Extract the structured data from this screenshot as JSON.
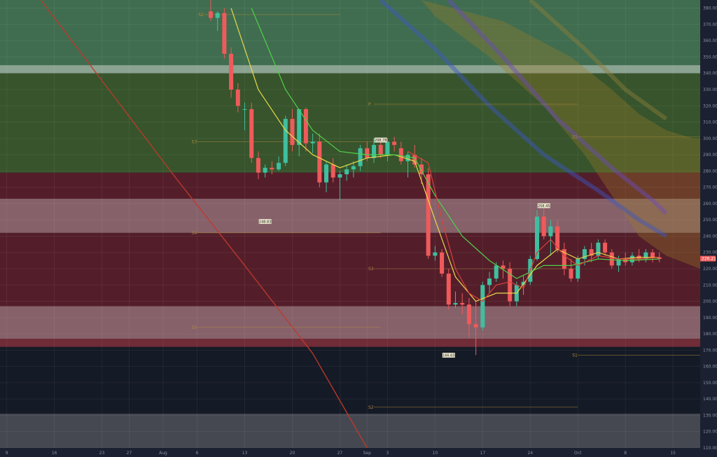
{
  "chart_data": {
    "type": "candlestick",
    "ylim": [
      110,
      385
    ],
    "y_ticks": [
      110,
      120,
      130,
      140,
      150,
      160,
      170,
      180,
      190,
      200,
      210,
      220,
      230,
      240,
      250,
      260,
      270,
      280,
      290,
      300,
      310,
      320,
      330,
      340,
      350,
      360,
      370,
      380
    ],
    "y_tick_labels": [
      "110.00",
      "120.00",
      "130.00",
      "140.00",
      "150.00",
      "160.00",
      "170.00",
      "180.00",
      "190.00",
      "200.00",
      "210.00",
      "220.00",
      "230.00",
      "240.00",
      "250.00",
      "260.00",
      "270.00",
      "280.00",
      "290.00",
      "300.00",
      "310.00",
      "320.00",
      "330.00",
      "340.00",
      "350.00",
      "360.00",
      "370.00",
      "380.00"
    ],
    "x_ticks": [
      {
        "label": "9",
        "day": -63
      },
      {
        "label": "16",
        "day": -56
      },
      {
        "label": "23",
        "day": -49
      },
      {
        "label": "27",
        "day": -45
      },
      {
        "label": "Aug",
        "day": -40
      },
      {
        "label": "6",
        "day": -35
      },
      {
        "label": "13",
        "day": -28
      },
      {
        "label": "20",
        "day": -21
      },
      {
        "label": "27",
        "day": -14
      },
      {
        "label": "Sep",
        "day": -10
      },
      {
        "label": "3",
        "day": -7
      },
      {
        "label": "10",
        "day": 0
      },
      {
        "label": "17",
        "day": 7
      },
      {
        "label": "24",
        "day": 14
      },
      {
        "label": "Oct",
        "day": 21
      },
      {
        "label": "8",
        "day": 28
      },
      {
        "label": "15",
        "day": 35
      }
    ],
    "xlim_days": [
      -64,
      39
    ],
    "current_price": 226.21,
    "current_price_label": "226.21",
    "zones": [
      {
        "from": 345,
        "to": 385,
        "color": "#4f8a5e",
        "opacity": 0.75
      },
      {
        "from": 340,
        "to": 345,
        "color": "#a9c6ad",
        "opacity": 0.8
      },
      {
        "from": 279,
        "to": 340,
        "color": "#3d5f2e",
        "opacity": 0.85
      },
      {
        "from": 263,
        "to": 279,
        "color": "#5a1f2b",
        "opacity": 0.9
      },
      {
        "from": 242,
        "to": 263,
        "color": "#9a6f77",
        "opacity": 0.85
      },
      {
        "from": 197,
        "to": 242,
        "color": "#5a1f2b",
        "opacity": 0.9
      },
      {
        "from": 177,
        "to": 197,
        "color": "#9a6f77",
        "opacity": 0.85
      },
      {
        "from": 172,
        "to": 177,
        "color": "#7a2f3a",
        "opacity": 0.9
      },
      {
        "from": 131,
        "to": 172,
        "color": "#141a26",
        "opacity": 1
      },
      {
        "from": 110,
        "to": 131,
        "color": "#4a4e57",
        "opacity": 0.9
      }
    ],
    "levels": [
      {
        "label": "S2",
        "price": 376,
        "day_from": -34,
        "day_to": -14
      },
      {
        "label": "P",
        "price": 321,
        "day_from": -9,
        "day_to": 21
      },
      {
        "label": "S3",
        "price": 298,
        "day_from": -35,
        "day_to": -8
      },
      {
        "label": "S1",
        "price": 301,
        "day_from": 21,
        "day_to": 39
      },
      {
        "label": "S4",
        "price": 242,
        "day_from": -35,
        "day_to": -8
      },
      {
        "label": "S3",
        "price": 220,
        "day_from": -9,
        "day_to": 21
      },
      {
        "label": "S5",
        "price": 184,
        "day_from": -35,
        "day_to": -8
      },
      {
        "label": "S1",
        "price": 167,
        "day_from": 21,
        "day_to": 39
      },
      {
        "label": "S2",
        "price": 135,
        "day_from": -9,
        "day_to": 21
      }
    ],
    "pivot_flags": [
      {
        "label": "248.83",
        "day": -25,
        "price": 248.8
      },
      {
        "label": "298.78",
        "day": -8,
        "price": 298.8
      },
      {
        "label": "258.45",
        "day": 16,
        "price": 258.5
      },
      {
        "label": "166.65",
        "day": 2,
        "price": 166.7
      }
    ],
    "candles": [
      {
        "day": -33,
        "o": 378,
        "h": 386,
        "l": 372,
        "c": 374
      },
      {
        "day": -32,
        "o": 374,
        "h": 378,
        "l": 366,
        "c": 377
      },
      {
        "day": -31,
        "o": 377,
        "h": 380,
        "l": 349,
        "c": 352
      },
      {
        "day": -30,
        "o": 352,
        "h": 356,
        "l": 325,
        "c": 330
      },
      {
        "day": -29,
        "o": 330,
        "h": 334,
        "l": 316,
        "c": 320
      },
      {
        "day": -28,
        "o": 318,
        "h": 322,
        "l": 305,
        "c": 318
      },
      {
        "day": -27,
        "o": 318,
        "h": 322,
        "l": 285,
        "c": 288
      },
      {
        "day": -26,
        "o": 288,
        "h": 292,
        "l": 275,
        "c": 279
      },
      {
        "day": -25,
        "o": 279,
        "h": 284,
        "l": 276,
        "c": 282
      },
      {
        "day": -24,
        "o": 282,
        "h": 286,
        "l": 278,
        "c": 281
      },
      {
        "day": -23,
        "o": 281,
        "h": 289,
        "l": 280,
        "c": 285
      },
      {
        "day": -22,
        "o": 285,
        "h": 314,
        "l": 283,
        "c": 312
      },
      {
        "day": -21,
        "o": 312,
        "h": 318,
        "l": 292,
        "c": 296
      },
      {
        "day": -20,
        "o": 296,
        "h": 318,
        "l": 289,
        "c": 318
      },
      {
        "day": -19,
        "o": 318,
        "h": 319,
        "l": 292,
        "c": 297
      },
      {
        "day": -18,
        "o": 297,
        "h": 303,
        "l": 291,
        "c": 298
      },
      {
        "day": -17,
        "o": 298,
        "h": 303,
        "l": 270,
        "c": 273
      },
      {
        "day": -16,
        "o": 273,
        "h": 286,
        "l": 267,
        "c": 284
      },
      {
        "day": -15,
        "o": 284,
        "h": 288,
        "l": 273,
        "c": 276
      },
      {
        "day": -14,
        "o": 276,
        "h": 280,
        "l": 262,
        "c": 278
      },
      {
        "day": -13,
        "o": 278,
        "h": 284,
        "l": 274,
        "c": 281
      },
      {
        "day": -12,
        "o": 281,
        "h": 286,
        "l": 276,
        "c": 283
      },
      {
        "day": -11,
        "o": 283,
        "h": 296,
        "l": 280,
        "c": 294
      },
      {
        "day": -10,
        "o": 294,
        "h": 298,
        "l": 286,
        "c": 288
      },
      {
        "day": -9,
        "o": 288,
        "h": 300,
        "l": 285,
        "c": 296
      },
      {
        "day": -8,
        "o": 296,
        "h": 300,
        "l": 288,
        "c": 290
      },
      {
        "day": -7,
        "o": 290,
        "h": 300,
        "l": 286,
        "c": 298
      },
      {
        "day": -6,
        "o": 298,
        "h": 301,
        "l": 292,
        "c": 296
      },
      {
        "day": -5,
        "o": 294,
        "h": 298,
        "l": 284,
        "c": 286
      },
      {
        "day": -4,
        "o": 286,
        "h": 292,
        "l": 276,
        "c": 290
      },
      {
        "day": -3,
        "o": 290,
        "h": 296,
        "l": 282,
        "c": 284
      },
      {
        "day": -2,
        "o": 284,
        "h": 288,
        "l": 272,
        "c": 278
      },
      {
        "day": -1,
        "o": 278,
        "h": 282,
        "l": 226,
        "c": 228
      },
      {
        "day": 0,
        "o": 228,
        "h": 234,
        "l": 225,
        "c": 230
      },
      {
        "day": 1,
        "o": 230,
        "h": 232,
        "l": 215,
        "c": 217
      },
      {
        "day": 2,
        "o": 217,
        "h": 220,
        "l": 195,
        "c": 198
      },
      {
        "day": 3,
        "o": 198,
        "h": 206,
        "l": 196,
        "c": 199
      },
      {
        "day": 4,
        "o": 199,
        "h": 205,
        "l": 192,
        "c": 198
      },
      {
        "day": 5,
        "o": 198,
        "h": 202,
        "l": 178,
        "c": 186
      },
      {
        "day": 6,
        "o": 186,
        "h": 200,
        "l": 167,
        "c": 184
      },
      {
        "day": 7,
        "o": 184,
        "h": 212,
        "l": 182,
        "c": 210
      },
      {
        "day": 8,
        "o": 210,
        "h": 218,
        "l": 205,
        "c": 214
      },
      {
        "day": 9,
        "o": 214,
        "h": 224,
        "l": 212,
        "c": 222
      },
      {
        "day": 10,
        "o": 222,
        "h": 225,
        "l": 214,
        "c": 220
      },
      {
        "day": 11,
        "o": 220,
        "h": 224,
        "l": 197,
        "c": 200
      },
      {
        "day": 12,
        "o": 200,
        "h": 212,
        "l": 197,
        "c": 210
      },
      {
        "day": 13,
        "o": 210,
        "h": 216,
        "l": 204,
        "c": 212
      },
      {
        "day": 14,
        "o": 212,
        "h": 228,
        "l": 210,
        "c": 226
      },
      {
        "day": 15,
        "o": 226,
        "h": 256,
        "l": 225,
        "c": 252
      },
      {
        "day": 16,
        "o": 252,
        "h": 258,
        "l": 238,
        "c": 240
      },
      {
        "day": 17,
        "o": 240,
        "h": 250,
        "l": 228,
        "c": 246
      },
      {
        "day": 18,
        "o": 246,
        "h": 250,
        "l": 230,
        "c": 232
      },
      {
        "day": 19,
        "o": 232,
        "h": 236,
        "l": 216,
        "c": 220
      },
      {
        "day": 20,
        "o": 220,
        "h": 226,
        "l": 212,
        "c": 214
      },
      {
        "day": 21,
        "o": 214,
        "h": 228,
        "l": 212,
        "c": 226
      },
      {
        "day": 22,
        "o": 226,
        "h": 234,
        "l": 222,
        "c": 232
      },
      {
        "day": 23,
        "o": 232,
        "h": 236,
        "l": 224,
        "c": 228
      },
      {
        "day": 24,
        "o": 228,
        "h": 238,
        "l": 226,
        "c": 236
      },
      {
        "day": 25,
        "o": 236,
        "h": 238,
        "l": 228,
        "c": 230
      },
      {
        "day": 26,
        "o": 230,
        "h": 232,
        "l": 220,
        "c": 222
      },
      {
        "day": 27,
        "o": 222,
        "h": 228,
        "l": 218,
        "c": 226
      },
      {
        "day": 28,
        "o": 226,
        "h": 230,
        "l": 222,
        "c": 224
      },
      {
        "day": 29,
        "o": 224,
        "h": 230,
        "l": 222,
        "c": 228
      },
      {
        "day": 30,
        "o": 228,
        "h": 232,
        "l": 224,
        "c": 226
      },
      {
        "day": 31,
        "o": 226,
        "h": 232,
        "l": 224,
        "c": 230
      },
      {
        "day": 32,
        "o": 230,
        "h": 232,
        "l": 224,
        "c": 227
      },
      {
        "day": 33,
        "o": 227,
        "h": 230,
        "l": 224,
        "c": 226
      }
    ],
    "moving_averages": [
      {
        "color": "#e8d84a",
        "points": [
          [
            -30,
            380
          ],
          [
            -26,
            330
          ],
          [
            -22,
            305
          ],
          [
            -18,
            290
          ],
          [
            -14,
            282
          ],
          [
            -10,
            288
          ],
          [
            -6,
            290
          ],
          [
            -3,
            286
          ],
          [
            0,
            250
          ],
          [
            3,
            215
          ],
          [
            6,
            200
          ],
          [
            9,
            205
          ],
          [
            12,
            205
          ],
          [
            15,
            222
          ],
          [
            18,
            232
          ],
          [
            21,
            226
          ],
          [
            24,
            230
          ],
          [
            27,
            226
          ],
          [
            30,
            227
          ],
          [
            33,
            227
          ]
        ]
      },
      {
        "color": "#4fd14a",
        "points": [
          [
            -27,
            380
          ],
          [
            -22,
            330
          ],
          [
            -18,
            305
          ],
          [
            -14,
            292
          ],
          [
            -10,
            290
          ],
          [
            -6,
            290
          ],
          [
            -3,
            288
          ],
          [
            0,
            265
          ],
          [
            4,
            240
          ],
          [
            8,
            225
          ],
          [
            12,
            214
          ],
          [
            16,
            222
          ],
          [
            20,
            222
          ],
          [
            24,
            226
          ],
          [
            28,
            225
          ],
          [
            33,
            226
          ]
        ]
      },
      {
        "color": "#d9413a",
        "points": [
          [
            -4,
            292
          ],
          [
            -1,
            285
          ],
          [
            1,
            250
          ],
          [
            3,
            220
          ],
          [
            5,
            205
          ],
          [
            7,
            200
          ],
          [
            9,
            210
          ],
          [
            11,
            212
          ],
          [
            13,
            208
          ],
          [
            15,
            230
          ],
          [
            17,
            238
          ],
          [
            19,
            228
          ],
          [
            21,
            222
          ],
          [
            24,
            228
          ],
          [
            27,
            226
          ],
          [
            30,
            226
          ],
          [
            33,
            227
          ]
        ]
      }
    ],
    "bands": [
      {
        "color": "#3b56c8",
        "points": [
          [
            -8,
            385
          ],
          [
            0,
            355
          ],
          [
            8,
            320
          ],
          [
            16,
            290
          ],
          [
            24,
            268
          ],
          [
            30,
            250
          ],
          [
            34,
            240
          ]
        ]
      },
      {
        "color": "#6a4ac0",
        "points": [
          [
            2,
            385
          ],
          [
            10,
            350
          ],
          [
            18,
            312
          ],
          [
            26,
            282
          ],
          [
            32,
            262
          ],
          [
            34,
            254
          ]
        ]
      },
      {
        "color": "#8f7f3a",
        "points": [
          [
            14,
            385
          ],
          [
            22,
            355
          ],
          [
            28,
            330
          ],
          [
            34,
            312
          ]
        ]
      },
      {
        "color": "#c0392b",
        "points": [
          [
            -58,
            385
          ],
          [
            -48,
            330
          ],
          [
            -38,
            275
          ],
          [
            -28,
            222
          ],
          [
            -18,
            168
          ],
          [
            -10,
            110
          ]
        ]
      }
    ],
    "cloud": {
      "color": "#9a7a28",
      "points": [
        [
          -2,
          385
        ],
        [
          10,
          372
        ],
        [
          20,
          350
        ],
        [
          26,
          330
        ],
        [
          30,
          315
        ],
        [
          34,
          305
        ],
        [
          38,
          300
        ],
        [
          39,
          300
        ],
        [
          39,
          220
        ],
        [
          34,
          228
        ],
        [
          30,
          240
        ],
        [
          26,
          265
        ],
        [
          22,
          290
        ],
        [
          16,
          320
        ],
        [
          8,
          350
        ],
        [
          0,
          375
        ]
      ]
    }
  }
}
